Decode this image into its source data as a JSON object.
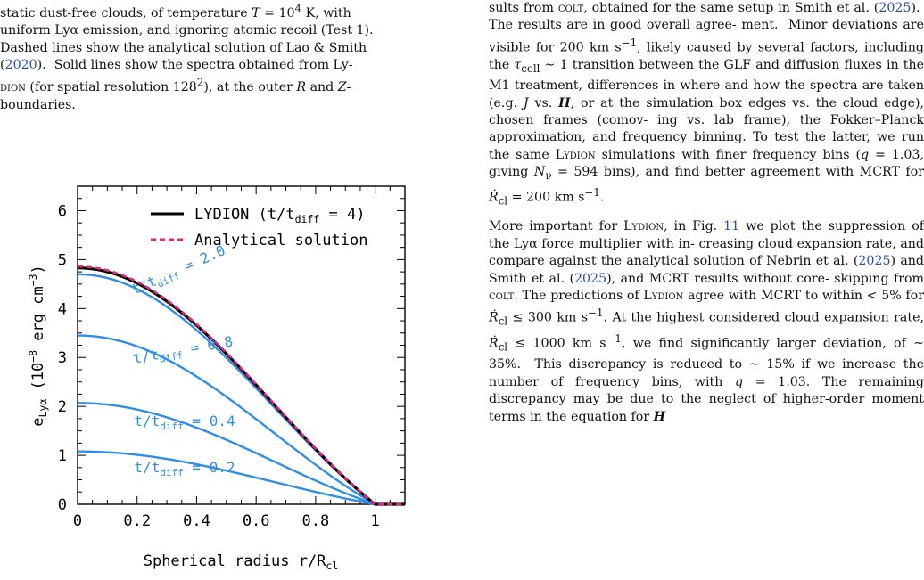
{
  "left_column": {
    "caption_lines": [
      "static dust-free clouds, of temperature T = 10⁴ K, with",
      "uniform Lyα emission, and ignoring atomic recoil (Test 1).",
      "Dashed lines show the analytical solution of Lao & Smith",
      "(2020).  Solid lines show the spectra obtained from Ly-",
      "dion (for spatial resolution 128²), at the outer R and Z-",
      "boundaries."
    ]
  },
  "right_column": {
    "lines": [
      "sults from colt, obtained for the same setup in Smith",
      "et al. (2025).  The results are in good overall agree-",
      "ment.  Minor deviations are visible for 200 km s⁻¹,",
      "likely caused by several factors, including the τcell ∼ 1",
      "transition between the GLF and diffusion fluxes in",
      "the M1 treatment, differences in where and how the",
      "spectra are taken (e.g. J vs. H, or at the simulation",
      "box edges vs. the cloud edge), chosen frames (comov-",
      "ing vs. lab frame), the Fokker–Planck approximation,",
      "and frequency binning. To test the latter, we run the",
      "same Lydion simulations with finer frequency bins",
      "(q = 1.03, giving Nν = 594 bins), and find better",
      "agreement with MCRT for Ṙcl = 200 km s⁻¹.",
      "More important for Lydion, in Fig. 11 we plot",
      "the suppression of the Lyα force multiplier with in-",
      "creasing cloud expansion rate, and compare against",
      "the analytical solution of Nebrin et al. (2025) and",
      "Smith et al. (2025), and MCRT results without core-",
      "skipping from colt. The predictions of Lydion agree",
      "with MCRT to within < 5% for Ṙcl ≤ 300 km s⁻¹. At",
      "the highest considered cloud expansion rate, Ṙcl ≤",
      "1000 km s⁻¹, we find significantly larger deviation, of",
      "∼ 35%.  This discrepancy is reduced to ∼ 15% if we",
      "increase the number of frequency bins, with q = 1.03.",
      "The remaining discrepancy may be due to the neglect",
      "of higher-order moment terms in the equation for H"
    ]
  },
  "chart_data": {
    "type": "line",
    "xlabel": "Spherical radius r/Rcl",
    "ylabel": "eLyα (10⁻⁸ erg cm⁻³)",
    "xlim": [
      0,
      1.1
    ],
    "ylim": [
      0,
      6.5
    ],
    "x_ticks": [
      0,
      0.2,
      0.4,
      0.6,
      0.8,
      1
    ],
    "x_tick_labels": [
      "0",
      "0.2",
      "0.4",
      "0.6",
      "0.8",
      "1"
    ],
    "y_ticks": [
      0,
      1,
      2,
      3,
      4,
      5,
      6
    ],
    "y_tick_labels": [
      "0",
      "1",
      "2",
      "3",
      "4",
      "5",
      "6"
    ],
    "legend": [
      {
        "label": "LYDION (t/tdiff = 4)",
        "color": "#000000",
        "style": "solid"
      },
      {
        "label": "Analytical solution",
        "color": "#e8257a",
        "style": "dashed"
      }
    ],
    "legend_placement": "top-right",
    "series": [
      {
        "name": "t/tdiff = 4",
        "color": "#000000",
        "style": "solid",
        "peak": 4.83
      },
      {
        "name": "Analytical solution",
        "color": "#e8257a",
        "style": "dashed",
        "peak": 4.86
      },
      {
        "name": "t/tdiff = 2.0",
        "color": "#2f8fe6",
        "style": "solid",
        "peak": 4.7
      },
      {
        "name": "t/tdiff = 0.8",
        "color": "#2f8fe6",
        "style": "solid",
        "peak": 3.45
      },
      {
        "name": "t/tdiff = 0.4",
        "color": "#2f8fe6",
        "style": "solid",
        "peak": 2.07
      },
      {
        "name": "t/tdiff = 0.2",
        "color": "#2f8fe6",
        "style": "solid",
        "peak": 1.08
      }
    ],
    "annotations": [
      {
        "text": "t/tdiff = 2.0",
        "x": 0.19,
        "y": 4.28,
        "rotation": -24
      },
      {
        "text": "t/tdiff = 0.8",
        "x": 0.19,
        "y": 2.88,
        "rotation": -10
      },
      {
        "text": "t/tdiff = 0.4",
        "x": 0.19,
        "y": 1.6,
        "rotation": 0
      },
      {
        "text": "t/tdiff = 0.2",
        "x": 0.19,
        "y": 0.66,
        "rotation": 0
      }
    ],
    "grid": false
  }
}
